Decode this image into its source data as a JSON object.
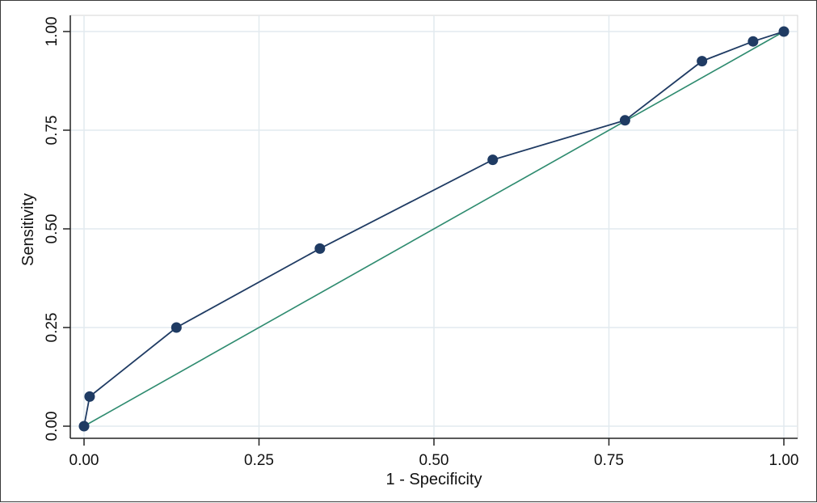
{
  "chart_data": {
    "type": "line",
    "title": "",
    "xlabel": "1 - Specificity",
    "ylabel": "Sensitivity",
    "xlim": [
      0,
      1
    ],
    "ylim": [
      0,
      1
    ],
    "xticks": [
      "0.00",
      "0.25",
      "0.50",
      "0.75",
      "1.00"
    ],
    "yticks": [
      "0.00",
      "0.25",
      "0.50",
      "0.75",
      "1.00"
    ],
    "grid": true,
    "series": [
      {
        "kind": "roc",
        "color": "#1f3b63",
        "x": [
          0.0,
          0.008,
          0.132,
          0.337,
          0.584,
          0.773,
          0.883,
          0.956,
          1.0
        ],
        "y": [
          0.0,
          0.075,
          0.25,
          0.45,
          0.675,
          0.775,
          0.925,
          0.975,
          1.0
        ]
      },
      {
        "kind": "reference",
        "color": "#2e8b6f",
        "x": [
          0,
          1
        ],
        "y": [
          0,
          1
        ]
      }
    ]
  }
}
